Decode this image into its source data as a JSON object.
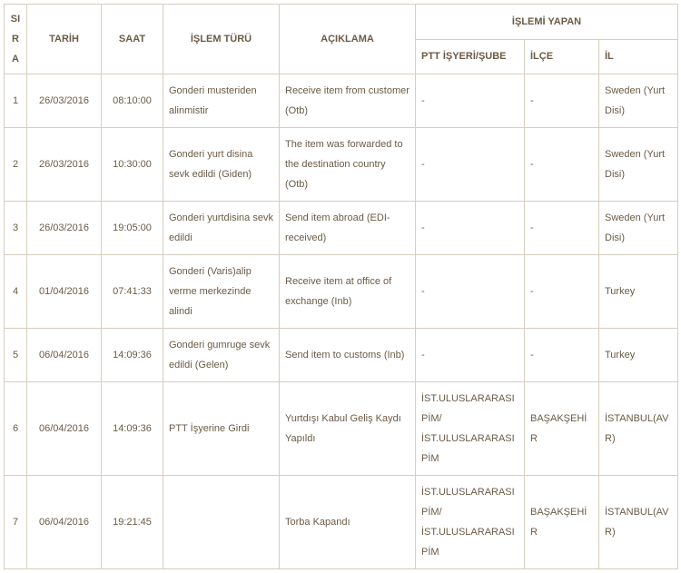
{
  "headers": {
    "sira": "SIRA",
    "tarih": "TARİH",
    "saat": "SAAT",
    "islem_turu": "İŞLEM TÜRÜ",
    "aciklama": "AÇIKLAMA",
    "islemi_yapan": "İŞLEMİ YAPAN",
    "ptt_isyeri": "PTT İŞYERİ/ŞUBE",
    "ilce": "İLÇE",
    "il": "İL"
  },
  "rows": [
    {
      "sira": "1",
      "tarih": "26/03/2016",
      "saat": "08:10:00",
      "islem_turu": "Gonderi musteriden alinmistir",
      "aciklama": "Receive item from customer (Otb)",
      "ptt_isyeri": "-",
      "ilce": "-",
      "il": "Sweden (Yurt Disi)"
    },
    {
      "sira": "2",
      "tarih": "26/03/2016",
      "saat": "10:30:00",
      "islem_turu": "Gonderi yurt disina sevk edildi (Giden)",
      "aciklama": "The item was forwarded to the destination country (Otb)",
      "ptt_isyeri": "-",
      "ilce": "-",
      "il": "Sweden (Yurt Disi)"
    },
    {
      "sira": "3",
      "tarih": "26/03/2016",
      "saat": "19:05:00",
      "islem_turu": "Gonderi yurtdisina sevk edildi",
      "aciklama": "Send item abroad (EDI-received)",
      "ptt_isyeri": "-",
      "ilce": "-",
      "il": "Sweden (Yurt Disi)"
    },
    {
      "sira": "4",
      "tarih": "01/04/2016",
      "saat": "07:41:33",
      "islem_turu": "Gonderi (Varis)alip verme merkezinde alindi",
      "aciklama": "Receive item at office of exchange (Inb)",
      "ptt_isyeri": "-",
      "ilce": "-",
      "il": "Turkey"
    },
    {
      "sira": "5",
      "tarih": "06/04/2016",
      "saat": "14:09:36",
      "islem_turu": "Gonderi gumruge sevk edildi (Gelen)",
      "aciklama": "Send item to customs (Inb)",
      "ptt_isyeri": "-",
      "ilce": "-",
      "il": "Turkey"
    },
    {
      "sira": "6",
      "tarih": "06/04/2016",
      "saat": "14:09:36",
      "islem_turu": "PTT İşyerine Girdi",
      "aciklama": "Yurtdışı Kabul Geliş Kaydı Yapıldı",
      "ptt_isyeri": "İST.ULUSLARARASI PİM/ İST.ULUSLARARASI PİM",
      "ilce": "BAŞAKŞEHİR",
      "il": "İSTANBUL(AVR)"
    },
    {
      "sira": "7",
      "tarih": "06/04/2016",
      "saat": "19:21:45",
      "islem_turu": "",
      "aciklama": "Torba Kapandı",
      "ptt_isyeri": "İST.ULUSLARARASI PİM/ İST.ULUSLARARASI PİM",
      "ilce": "BAŞAKŞEHİR",
      "il": "İSTANBUL(AVR)"
    }
  ]
}
